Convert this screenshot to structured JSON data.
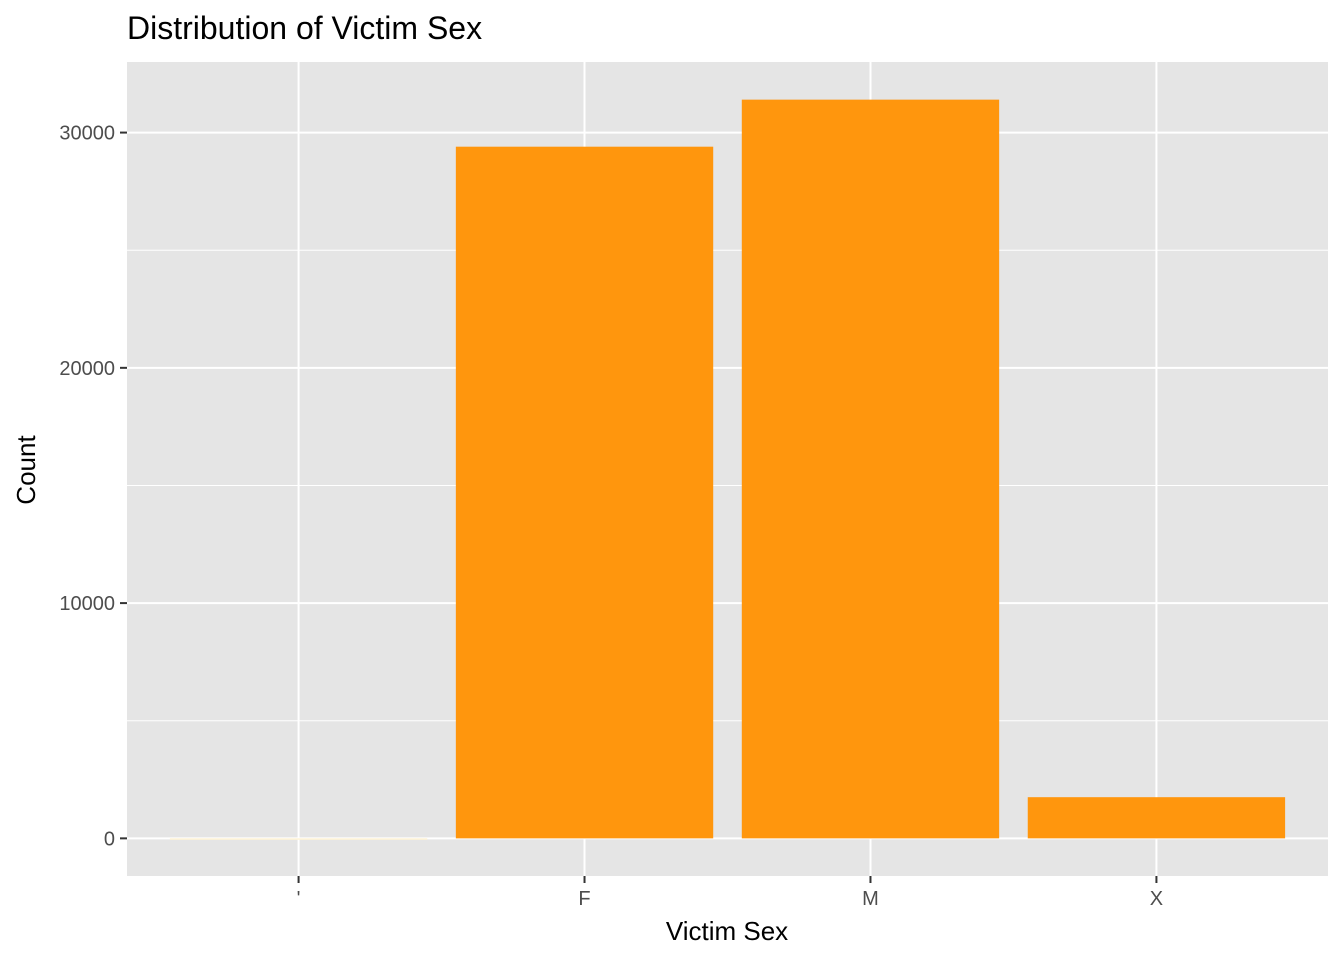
{
  "chart_data": {
    "type": "bar",
    "title": "Distribution of Victim Sex",
    "xlabel": "Victim Sex",
    "ylabel": "Count",
    "categories": [
      "",
      "F",
      "M",
      "X"
    ],
    "category_tick_labels": [
      "'",
      "F",
      "M",
      "X"
    ],
    "values": [
      3,
      29400,
      31400,
      1750
    ],
    "ylim": [
      -1600,
      33000
    ],
    "yticks": [
      0,
      10000,
      20000,
      30000
    ],
    "ytick_labels": [
      "0",
      "10000",
      "20000",
      "30000"
    ],
    "grid": true,
    "legend": "none",
    "colors": {
      "bar": "#FF960D",
      "first_bar": "#FFF4D6",
      "panel_background": "#E5E5E5",
      "gridline": "#FFFFFF",
      "tick_label": "#4D4D4D",
      "tick_mark": "#333333"
    }
  }
}
